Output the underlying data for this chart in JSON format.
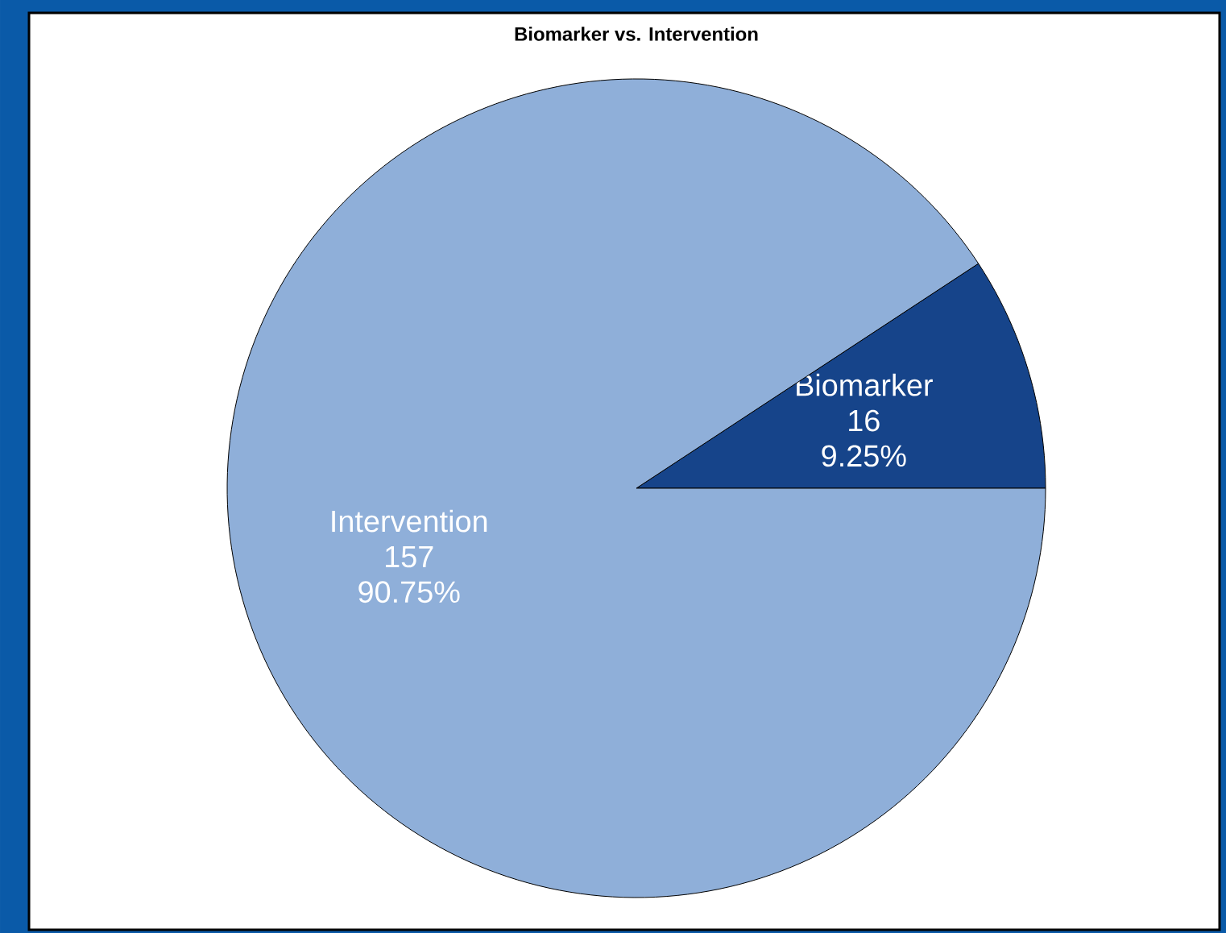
{
  "chart_data": {
    "type": "pie",
    "title": "Biomarker vs. Intervention",
    "categories": [
      "Biomarker",
      "Intervention"
    ],
    "values": [
      16,
      157
    ],
    "colors": [
      "#16448a",
      "#8fafd9"
    ],
    "value_labels": [
      "16",
      "157"
    ],
    "annotations": [
      "9.25%",
      "90.75%"
    ]
  }
}
